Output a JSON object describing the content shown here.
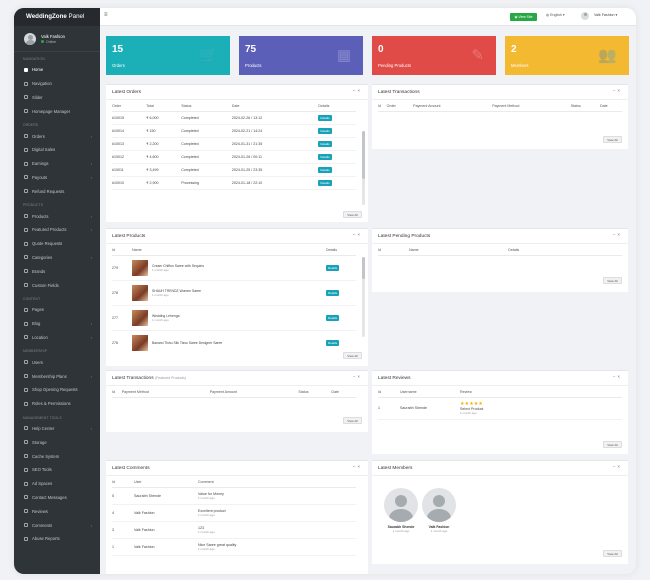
{
  "brand": {
    "bold": "WeddingZone",
    "light": "Panel"
  },
  "user": {
    "name": "Valk Fashion",
    "status": "Online"
  },
  "sidebar": {
    "sections": [
      {
        "label": "NAVIGATION",
        "items": [
          {
            "label": "Home",
            "active": true,
            "chevron": false
          },
          {
            "label": "Navigation",
            "chevron": false
          },
          {
            "label": "Slider",
            "chevron": false
          },
          {
            "label": "Homepage Manager",
            "chevron": false
          }
        ]
      },
      {
        "label": "ORDERS",
        "items": [
          {
            "label": "Orders",
            "chevron": true
          },
          {
            "label": "Digital Sales",
            "chevron": false
          },
          {
            "label": "Earnings",
            "chevron": true
          },
          {
            "label": "Payouts",
            "chevron": true
          },
          {
            "label": "Refund Requests",
            "chevron": false
          }
        ]
      },
      {
        "label": "PRODUCTS",
        "items": [
          {
            "label": "Products",
            "chevron": true
          },
          {
            "label": "Featured Products",
            "chevron": true
          },
          {
            "label": "Quote Requests",
            "chevron": false
          },
          {
            "label": "Categories",
            "chevron": true
          },
          {
            "label": "Brands",
            "chevron": false
          },
          {
            "label": "Custom Fields",
            "chevron": false
          }
        ]
      },
      {
        "label": "CONTENT",
        "items": [
          {
            "label": "Pages",
            "chevron": false
          },
          {
            "label": "Blog",
            "chevron": true
          },
          {
            "label": "Location",
            "chevron": true
          }
        ]
      },
      {
        "label": "MEMBERSHIP",
        "items": [
          {
            "label": "Users",
            "chevron": false
          },
          {
            "label": "Membership Plans",
            "chevron": true
          },
          {
            "label": "Shop Opening Requests",
            "chevron": false
          },
          {
            "label": "Roles & Permissions",
            "chevron": false
          }
        ]
      },
      {
        "label": "MANAGEMENT TOOLS",
        "items": [
          {
            "label": "Help Center",
            "chevron": true
          },
          {
            "label": "Storage",
            "chevron": false
          },
          {
            "label": "Cache System",
            "chevron": false
          },
          {
            "label": "SEO Tools",
            "chevron": false
          },
          {
            "label": "Ad Spaces",
            "chevron": false
          },
          {
            "label": "Contact Messages",
            "chevron": false
          },
          {
            "label": "Reviews",
            "chevron": false
          },
          {
            "label": "Comments",
            "chevron": true
          },
          {
            "label": "Abuse Reports",
            "chevron": false
          }
        ]
      }
    ]
  },
  "topbar": {
    "view_site": "View Site",
    "language": "English",
    "user": "Valk Fashion"
  },
  "stats": [
    {
      "value": "15",
      "label": "Orders",
      "color": "#1bb0b8",
      "icon": "cart-icon",
      "glyph": "🛒"
    },
    {
      "value": "75",
      "label": "Products",
      "color": "#5c5fb8",
      "icon": "basket-icon",
      "glyph": "▦"
    },
    {
      "value": "0",
      "label": "Pending Products",
      "color": "#e04a47",
      "icon": "tag-icon",
      "glyph": "✎"
    },
    {
      "value": "2",
      "label": "Members",
      "color": "#f3b931",
      "icon": "users-icon",
      "glyph": "👥"
    }
  ],
  "latest_orders": {
    "title": "Latest Orders",
    "columns": [
      "Order",
      "Total",
      "Status",
      "Date",
      "Details"
    ],
    "rows": [
      {
        "order": "#10015",
        "total": "₹ 6,000",
        "status": "Completed",
        "date": "2024-02-26 / 13:12",
        "details": "Details"
      },
      {
        "order": "#10014",
        "total": "₹ 150",
        "status": "Completed",
        "date": "2024-02-21 / 14:24",
        "details": "Details"
      },
      {
        "order": "#10013",
        "total": "₹ 2,200",
        "status": "Completed",
        "date": "2024-01-31 / 21:35",
        "details": "Details"
      },
      {
        "order": "#10012",
        "total": "₹ 4,600",
        "status": "Completed",
        "date": "2024-01-26 / 00:11",
        "details": "Details"
      },
      {
        "order": "#10011",
        "total": "₹ 3,499",
        "status": "Completed",
        "date": "2024-01-25 / 23:35",
        "details": "Details"
      },
      {
        "order": "#10010",
        "total": "₹ 2,900",
        "status": "Processing",
        "date": "2024-01-18 / 22:10",
        "details": "Details"
      }
    ],
    "view_all": "View All"
  },
  "latest_transactions": {
    "title": "Latest Transactions",
    "columns": [
      "Id",
      "Order",
      "Payment Amount",
      "Payment Method",
      "Status",
      "Date"
    ],
    "view_all": "View All"
  },
  "latest_products": {
    "title": "Latest Products",
    "columns": [
      "Id",
      "Name",
      "Details"
    ],
    "rows": [
      {
        "id": "279",
        "name": "Cream Chiffon Saree with Sequins",
        "age": "1 month ago",
        "details": "Details"
      },
      {
        "id": "278",
        "name": "SHAUH TRENDZ Women Saree",
        "age": "1 month ago",
        "details": "Details"
      },
      {
        "id": "277",
        "name": "Wedding Lehenga",
        "age": "1 month ago",
        "details": "Details"
      },
      {
        "id": "276",
        "name": "Banarsi Tishu Silk Tissu Saree Designer Saree",
        "age": "",
        "details": "Details"
      }
    ],
    "view_all": "View All"
  },
  "latest_pending_products": {
    "title": "Latest Pending Products",
    "columns": [
      "Id",
      "Name",
      "Details"
    ],
    "view_all": "View All"
  },
  "latest_transactions_featured": {
    "title": "Latest Transactions",
    "subtitle": "(Featured Products)",
    "columns": [
      "Id",
      "Payment Method",
      "Payment Amount",
      "Status",
      "Date"
    ],
    "view_all": "View All"
  },
  "latest_reviews": {
    "title": "Latest Reviews",
    "columns": [
      "Id",
      "Username",
      "Review"
    ],
    "rows": [
      {
        "id": "1",
        "username": "Saurabh Shende",
        "stars": "★★★★★",
        "review": "Select Product",
        "age": "1 month ago"
      }
    ],
    "view_all": "View All"
  },
  "latest_comments": {
    "title": "Latest Comments",
    "columns": [
      "Id",
      "User",
      "Comment"
    ],
    "rows": [
      {
        "id": "5",
        "user": "Saurabh Shende",
        "comment": "Value for Money",
        "age": "1 month ago"
      },
      {
        "id": "4",
        "user": "Valk Fashion",
        "comment": "Excellent product",
        "age": "1 month ago"
      },
      {
        "id": "3",
        "user": "Valk Fashion",
        "comment": "123",
        "age": "1 month ago"
      },
      {
        "id": "1",
        "user": "Valk Fashion",
        "comment": "Nice Saree great quality",
        "age": "1 month ago"
      }
    ],
    "view_all": "View All"
  },
  "latest_members": {
    "title": "Latest Members",
    "members": [
      {
        "name": "Saurabh Shende",
        "age": "1 month ago"
      },
      {
        "name": "Valk Fashion",
        "age": "1 month ago"
      }
    ],
    "view_all": "View All"
  }
}
